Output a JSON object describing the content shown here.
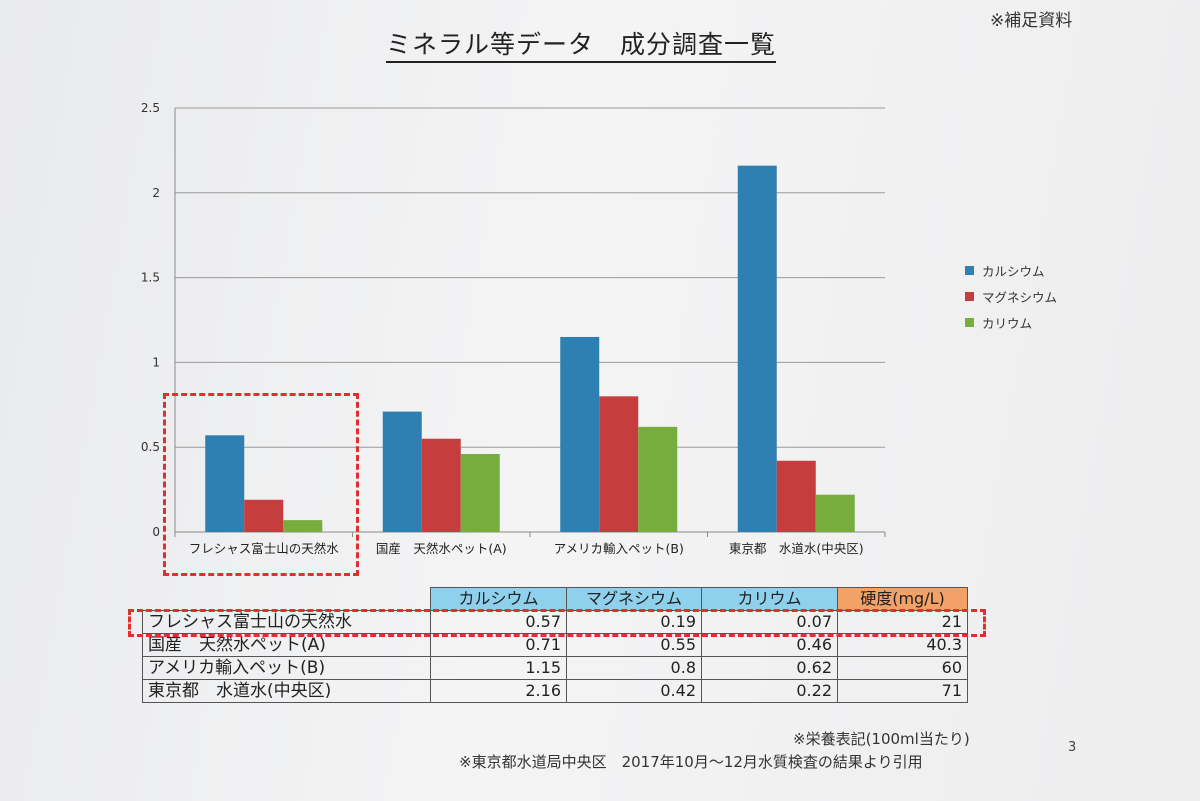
{
  "header": {
    "note": "※補足資料",
    "title": "ミネラル等データ　成分調査一覧"
  },
  "chart_data": {
    "type": "bar",
    "categories": [
      "フレシャス富士山の天然水",
      "国産　天然水ペット(A)",
      "アメリカ輸入ペット(B)",
      "東京都　水道水(中央区)"
    ],
    "series": [
      {
        "name": "カルシウム",
        "values": [
          0.57,
          0.71,
          1.15,
          2.16
        ],
        "color": "#2e7fb2"
      },
      {
        "name": "マグネシウム",
        "values": [
          0.19,
          0.55,
          0.8,
          0.42
        ],
        "color": "#c53d3d"
      },
      {
        "name": "カリウム",
        "values": [
          0.07,
          0.46,
          0.62,
          0.22
        ],
        "color": "#76ad3c"
      }
    ],
    "ylim": [
      0,
      2.5
    ],
    "yticks": [
      "0",
      "0.5",
      "1",
      "1.5",
      "2",
      "2.5"
    ],
    "grid": true,
    "legend": "right"
  },
  "table": {
    "headers": [
      "カルシウム",
      "マグネシウム",
      "カリウム",
      "硬度(mg/L)"
    ],
    "rows": [
      {
        "label": "フレシャス富士山の天然水",
        "values": [
          "0.57",
          "0.19",
          "0.07",
          "21"
        ]
      },
      {
        "label": "国産　天然水ペット(A)",
        "values": [
          "0.71",
          "0.55",
          "0.46",
          "40.3"
        ]
      },
      {
        "label": "アメリカ輸入ペット(B)",
        "values": [
          "1.15",
          "0.8",
          "0.62",
          "60"
        ]
      },
      {
        "label": "東京都　水道水(中央区)",
        "values": [
          "2.16",
          "0.42",
          "0.22",
          "71"
        ]
      }
    ]
  },
  "footer": {
    "note1": "※栄養表記(100ml当たり)",
    "note2": "※東京都水道局中央区　2017年10月～12月水質検査の結果より引用",
    "page": "3"
  },
  "colors": {
    "highlight": "#e0302e",
    "header_bg": "#8fd0ec",
    "hardness_bg": "#f2a266"
  }
}
